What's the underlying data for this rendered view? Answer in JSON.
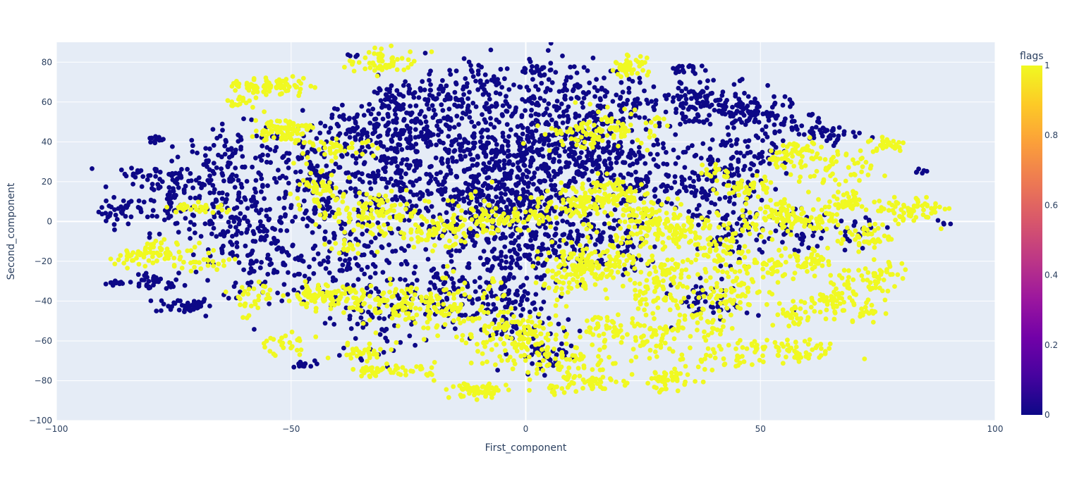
{
  "chart_data": {
    "type": "scatter",
    "title": "",
    "xlabel": "First_component",
    "ylabel": "Second_component",
    "xlim": [
      -100,
      100
    ],
    "ylim": [
      -100,
      90
    ],
    "x_ticks": [
      -100,
      -50,
      0,
      50,
      100
    ],
    "x_tick_labels": [
      "−100",
      "−50",
      "0",
      "50",
      "100"
    ],
    "y_ticks": [
      -100,
      -80,
      -60,
      -40,
      -20,
      0,
      20,
      40,
      60,
      80
    ],
    "y_tick_labels": [
      "−100",
      "−80",
      "−60",
      "−40",
      "−20",
      "0",
      "20",
      "40",
      "60",
      "80"
    ],
    "grid": true,
    "plot_background": "#e5ecf6",
    "color_variable": "flags",
    "colorscale": "plasma",
    "colorbar": {
      "title": "flags",
      "range": [
        0,
        1
      ],
      "ticks": [
        0,
        0.2,
        0.4,
        0.6,
        0.8,
        1
      ],
      "tick_labels": [
        "0",
        "0.2",
        "0.4",
        "0.6",
        "0.8",
        "1"
      ],
      "colors": [
        "#0d0887",
        "#46039f",
        "#7201a8",
        "#9c179e",
        "#bd3786",
        "#d8576b",
        "#ed7953",
        "#fb9f3a",
        "#fdca26",
        "#f0f921"
      ]
    },
    "marker_colors": {
      "flag_0": "#0d0887",
      "flag_1": "#f0f921"
    },
    "clusters": [
      {
        "flag": 0,
        "cx": -87,
        "cy": -31,
        "sx": 1.2,
        "sy": 0.8,
        "n": 12
      },
      {
        "flag": 0,
        "cx": -87,
        "cy": 5,
        "sx": 2.0,
        "sy": 3.5,
        "n": 30
      },
      {
        "flag": 0,
        "cx": -82,
        "cy": 24,
        "sx": 2.0,
        "sy": 1.5,
        "n": 15
      },
      {
        "flag": 0,
        "cx": -79,
        "cy": 41,
        "sx": 1.0,
        "sy": 1.0,
        "n": 12
      },
      {
        "flag": 0,
        "cx": -79,
        "cy": -31,
        "sx": 3.0,
        "sy": 2.0,
        "n": 35
      },
      {
        "flag": 0,
        "cx": -73,
        "cy": -42,
        "sx": 3.0,
        "sy": 2.0,
        "n": 40
      },
      {
        "flag": 0,
        "cx": -75,
        "cy": 15,
        "sx": 5.0,
        "sy": 10.0,
        "n": 110
      },
      {
        "flag": 0,
        "cx": -62,
        "cy": 0,
        "sx": 6.0,
        "sy": 14.0,
        "n": 160
      },
      {
        "flag": 0,
        "cx": -62,
        "cy": 32,
        "sx": 6.0,
        "sy": 8.0,
        "n": 80
      },
      {
        "flag": 0,
        "cx": -55,
        "cy": -22,
        "sx": 5.0,
        "sy": 8.0,
        "n": 70
      },
      {
        "flag": 0,
        "cx": -48,
        "cy": -72,
        "sx": 1.5,
        "sy": 1.0,
        "n": 12
      },
      {
        "flag": 0,
        "cx": -45,
        "cy": 20,
        "sx": 6.0,
        "sy": 15.0,
        "n": 160
      },
      {
        "flag": 0,
        "cx": -40,
        "cy": -20,
        "sx": 6.0,
        "sy": 14.0,
        "n": 120
      },
      {
        "flag": 0,
        "cx": -37,
        "cy": 83,
        "sx": 0.8,
        "sy": 0.8,
        "n": 4
      },
      {
        "flag": 0,
        "cx": -35,
        "cy": 47,
        "sx": 6.0,
        "sy": 6.0,
        "n": 60
      },
      {
        "flag": 0,
        "cx": -32,
        "cy": -52,
        "sx": 5.0,
        "sy": 8.0,
        "n": 50
      },
      {
        "flag": 0,
        "cx": -28,
        "cy": 25,
        "sx": 6.0,
        "sy": 12.0,
        "n": 180
      },
      {
        "flag": 0,
        "cx": -26,
        "cy": 60,
        "sx": 5.0,
        "sy": 6.0,
        "n": 90
      },
      {
        "flag": 0,
        "cx": -22,
        "cy": 45,
        "sx": 5.0,
        "sy": 7.0,
        "n": 90
      },
      {
        "flag": 0,
        "cx": -18,
        "cy": -35,
        "sx": 7.0,
        "sy": 8.0,
        "n": 110
      },
      {
        "flag": 0,
        "cx": -15,
        "cy": 12,
        "sx": 7.0,
        "sy": 18.0,
        "n": 220
      },
      {
        "flag": 0,
        "cx": -10,
        "cy": 65,
        "sx": 6.0,
        "sy": 10.0,
        "n": 110
      },
      {
        "flag": 0,
        "cx": -5,
        "cy": 35,
        "sx": 7.0,
        "sy": 12.0,
        "n": 200
      },
      {
        "flag": 0,
        "cx": -3,
        "cy": -10,
        "sx": 5.0,
        "sy": 12.0,
        "n": 170
      },
      {
        "flag": 0,
        "cx": -5,
        "cy": -45,
        "sx": 5.0,
        "sy": 10.0,
        "n": 90
      },
      {
        "flag": 0,
        "cx": 2,
        "cy": 76,
        "sx": 1.5,
        "sy": 2.0,
        "n": 20
      },
      {
        "flag": 0,
        "cx": 0,
        "cy": 15,
        "sx": 6.0,
        "sy": 10.0,
        "n": 170
      },
      {
        "flag": 0,
        "cx": 5,
        "cy": -65,
        "sx": 3.0,
        "sy": 6.0,
        "n": 40
      },
      {
        "flag": 0,
        "cx": 8,
        "cy": 60,
        "sx": 6.0,
        "sy": 12.0,
        "n": 160
      },
      {
        "flag": 0,
        "cx": 10,
        "cy": 35,
        "sx": 6.0,
        "sy": 10.0,
        "n": 130
      },
      {
        "flag": 0,
        "cx": 10,
        "cy": -10,
        "sx": 5.0,
        "sy": 8.0,
        "n": 80
      },
      {
        "flag": 0,
        "cx": 18,
        "cy": 25,
        "sx": 5.0,
        "sy": 10.0,
        "n": 100
      },
      {
        "flag": 0,
        "cx": 20,
        "cy": -10,
        "sx": 4.0,
        "sy": 8.0,
        "n": 60
      },
      {
        "flag": 0,
        "cx": 22,
        "cy": 60,
        "sx": 5.0,
        "sy": 6.0,
        "n": 60
      },
      {
        "flag": 0,
        "cx": 28,
        "cy": 20,
        "sx": 5.0,
        "sy": 10.0,
        "n": 70
      },
      {
        "flag": 0,
        "cx": 35,
        "cy": 62,
        "sx": 4.0,
        "sy": 5.0,
        "n": 60
      },
      {
        "flag": 0,
        "cx": 34,
        "cy": 76,
        "sx": 2.0,
        "sy": 1.5,
        "n": 20
      },
      {
        "flag": 0,
        "cx": 38,
        "cy": 20,
        "sx": 5.0,
        "sy": 10.0,
        "n": 90
      },
      {
        "flag": 0,
        "cx": 40,
        "cy": -40,
        "sx": 4.0,
        "sy": 5.0,
        "n": 50
      },
      {
        "flag": 0,
        "cx": 45,
        "cy": 55,
        "sx": 6.0,
        "sy": 6.0,
        "n": 140
      },
      {
        "flag": 0,
        "cx": 48,
        "cy": 30,
        "sx": 4.0,
        "sy": 8.0,
        "n": 70
      },
      {
        "flag": 0,
        "cx": 45,
        "cy": -5,
        "sx": 4.0,
        "sy": 8.0,
        "n": 70
      },
      {
        "flag": 0,
        "cx": 58,
        "cy": 48,
        "sx": 3.0,
        "sy": 3.0,
        "n": 20
      },
      {
        "flag": 0,
        "cx": 64,
        "cy": 45,
        "sx": 2.0,
        "sy": 3.0,
        "n": 20
      },
      {
        "flag": 0,
        "cx": 67,
        "cy": 45,
        "sx": 3.0,
        "sy": 2.0,
        "n": 15
      },
      {
        "flag": 0,
        "cx": 59,
        "cy": -5,
        "sx": 3.0,
        "sy": 6.0,
        "n": 30
      },
      {
        "flag": 0,
        "cx": 72,
        "cy": -5,
        "sx": 3.0,
        "sy": 4.0,
        "n": 20
      },
      {
        "flag": 0,
        "cx": 84,
        "cy": 25,
        "sx": 1.0,
        "sy": 1.0,
        "n": 6
      },
      {
        "flag": 0,
        "cx": 89,
        "cy": 0,
        "sx": 1.0,
        "sy": 1.0,
        "n": 4
      },
      {
        "flag": 1,
        "cx": -83,
        "cy": -18,
        "sx": 3.0,
        "sy": 2.0,
        "n": 30
      },
      {
        "flag": 1,
        "cx": -77,
        "cy": -15,
        "sx": 3.0,
        "sy": 3.0,
        "n": 40
      },
      {
        "flag": 1,
        "cx": -70,
        "cy": 7,
        "sx": 3.0,
        "sy": 1.5,
        "n": 30
      },
      {
        "flag": 1,
        "cx": -68,
        "cy": -20,
        "sx": 3.0,
        "sy": 3.0,
        "n": 25
      },
      {
        "flag": 1,
        "cx": -61,
        "cy": 60,
        "sx": 1.5,
        "sy": 2.0,
        "n": 15
      },
      {
        "flag": 1,
        "cx": -58,
        "cy": 68,
        "sx": 2.5,
        "sy": 2.0,
        "n": 35
      },
      {
        "flag": 1,
        "cx": -52,
        "cy": 68,
        "sx": 3.0,
        "sy": 2.5,
        "n": 45
      },
      {
        "flag": 1,
        "cx": -52,
        "cy": 46,
        "sx": 3.0,
        "sy": 3.0,
        "n": 80
      },
      {
        "flag": 1,
        "cx": -58,
        "cy": -38,
        "sx": 3.0,
        "sy": 5.0,
        "n": 30
      },
      {
        "flag": 1,
        "cx": -52,
        "cy": -62,
        "sx": 3.0,
        "sy": 3.0,
        "n": 25
      },
      {
        "flag": 1,
        "cx": -45,
        "cy": 15,
        "sx": 3.0,
        "sy": 5.0,
        "n": 50
      },
      {
        "flag": 1,
        "cx": -43,
        "cy": -38,
        "sx": 4.0,
        "sy": 3.0,
        "n": 90
      },
      {
        "flag": 1,
        "cx": -40,
        "cy": 37,
        "sx": 4.0,
        "sy": 2.0,
        "n": 40
      },
      {
        "flag": 1,
        "cx": -38,
        "cy": -13,
        "sx": 2.0,
        "sy": 2.0,
        "n": 15
      },
      {
        "flag": 1,
        "cx": -35,
        "cy": -65,
        "sx": 3.0,
        "sy": 2.0,
        "n": 30
      },
      {
        "flag": 1,
        "cx": -33,
        "cy": -76,
        "sx": 2.0,
        "sy": 2.0,
        "n": 25
      },
      {
        "flag": 1,
        "cx": -32,
        "cy": 5,
        "sx": 5.0,
        "sy": 6.0,
        "n": 100
      },
      {
        "flag": 1,
        "cx": -30,
        "cy": 80,
        "sx": 4.0,
        "sy": 3.0,
        "n": 60
      },
      {
        "flag": 1,
        "cx": -28,
        "cy": -42,
        "sx": 5.0,
        "sy": 5.0,
        "n": 90
      },
      {
        "flag": 1,
        "cx": -25,
        "cy": -75,
        "sx": 3.0,
        "sy": 2.0,
        "n": 30
      },
      {
        "flag": 1,
        "cx": -20,
        "cy": -5,
        "sx": 4.0,
        "sy": 4.0,
        "n": 60
      },
      {
        "flag": 1,
        "cx": -15,
        "cy": -45,
        "sx": 6.0,
        "sy": 8.0,
        "n": 110
      },
      {
        "flag": 1,
        "cx": -12,
        "cy": 0,
        "sx": 4.0,
        "sy": 6.0,
        "n": 50
      },
      {
        "flag": 1,
        "cx": -10,
        "cy": -85,
        "sx": 3.0,
        "sy": 2.0,
        "n": 70
      },
      {
        "flag": 1,
        "cx": -5,
        "cy": -60,
        "sx": 4.0,
        "sy": 6.0,
        "n": 60
      },
      {
        "flag": 1,
        "cx": -5,
        "cy": 0,
        "sx": 3.0,
        "sy": 3.0,
        "n": 30
      },
      {
        "flag": 1,
        "cx": 2,
        "cy": -55,
        "sx": 3.0,
        "sy": 5.0,
        "n": 50
      },
      {
        "flag": 1,
        "cx": 3,
        "cy": 5,
        "sx": 4.0,
        "sy": 4.0,
        "n": 50
      },
      {
        "flag": 1,
        "cx": 8,
        "cy": -70,
        "sx": 6.0,
        "sy": 4.0,
        "n": 70
      },
      {
        "flag": 1,
        "cx": 7,
        "cy": -85,
        "sx": 1.5,
        "sy": 1.5,
        "n": 12
      },
      {
        "flag": 1,
        "cx": 10,
        "cy": -25,
        "sx": 4.0,
        "sy": 6.0,
        "n": 100
      },
      {
        "flag": 1,
        "cx": 12,
        "cy": 43,
        "sx": 4.0,
        "sy": 4.0,
        "n": 50
      },
      {
        "flag": 1,
        "cx": 12,
        "cy": 10,
        "sx": 4.0,
        "sy": 4.0,
        "n": 70
      },
      {
        "flag": 1,
        "cx": 13,
        "cy": -80,
        "sx": 3.0,
        "sy": 2.0,
        "n": 40
      },
      {
        "flag": 1,
        "cx": 16,
        "cy": -20,
        "sx": 4.0,
        "sy": 5.0,
        "n": 70
      },
      {
        "flag": 1,
        "cx": 18,
        "cy": 15,
        "sx": 4.0,
        "sy": 4.0,
        "n": 60
      },
      {
        "flag": 1,
        "cx": 20,
        "cy": -55,
        "sx": 4.0,
        "sy": 6.0,
        "n": 60
      },
      {
        "flag": 1,
        "cx": 20,
        "cy": 47,
        "sx": 4.0,
        "sy": 4.0,
        "n": 60
      },
      {
        "flag": 1,
        "cx": 22,
        "cy": 78,
        "sx": 2.0,
        "sy": 2.5,
        "n": 45
      },
      {
        "flag": 1,
        "cx": 25,
        "cy": -5,
        "sx": 5.0,
        "sy": 6.0,
        "n": 80
      },
      {
        "flag": 1,
        "cx": 25,
        "cy": 5,
        "sx": 4.0,
        "sy": 4.0,
        "n": 50
      },
      {
        "flag": 1,
        "cx": 28,
        "cy": -60,
        "sx": 3.0,
        "sy": 5.0,
        "n": 40
      },
      {
        "flag": 1,
        "cx": 28,
        "cy": -35,
        "sx": 4.0,
        "sy": 5.0,
        "n": 60
      },
      {
        "flag": 1,
        "cx": 30,
        "cy": -80,
        "sx": 3.0,
        "sy": 3.0,
        "n": 50
      },
      {
        "flag": 1,
        "cx": 30,
        "cy": -25,
        "sx": 3.0,
        "sy": 3.0,
        "n": 40
      },
      {
        "flag": 1,
        "cx": 33,
        "cy": -5,
        "sx": 4.0,
        "sy": 4.0,
        "n": 50
      },
      {
        "flag": 1,
        "cx": 38,
        "cy": -50,
        "sx": 3.0,
        "sy": 5.0,
        "n": 40
      },
      {
        "flag": 1,
        "cx": 40,
        "cy": 25,
        "sx": 2.0,
        "sy": 2.0,
        "n": 15
      },
      {
        "flag": 1,
        "cx": 40,
        "cy": -15,
        "sx": 3.0,
        "sy": 5.0,
        "n": 50
      },
      {
        "flag": 1,
        "cx": 42,
        "cy": -68,
        "sx": 4.0,
        "sy": 4.0,
        "n": 40
      },
      {
        "flag": 1,
        "cx": 45,
        "cy": -35,
        "sx": 4.0,
        "sy": 5.0,
        "n": 60
      },
      {
        "flag": 1,
        "cx": 47,
        "cy": 18,
        "sx": 3.0,
        "sy": 3.0,
        "n": 40
      },
      {
        "flag": 1,
        "cx": 50,
        "cy": 0,
        "sx": 4.0,
        "sy": 5.0,
        "n": 50
      },
      {
        "flag": 1,
        "cx": 52,
        "cy": -22,
        "sx": 4.0,
        "sy": 4.0,
        "n": 40
      },
      {
        "flag": 1,
        "cx": 55,
        "cy": 30,
        "sx": 2.0,
        "sy": 2.0,
        "n": 15
      },
      {
        "flag": 1,
        "cx": 55,
        "cy": 5,
        "sx": 3.0,
        "sy": 3.0,
        "n": 40
      },
      {
        "flag": 1,
        "cx": 57,
        "cy": -47,
        "sx": 2.0,
        "sy": 3.0,
        "n": 30
      },
      {
        "flag": 1,
        "cx": 58,
        "cy": 35,
        "sx": 3.0,
        "sy": 3.0,
        "n": 50
      },
      {
        "flag": 1,
        "cx": 57,
        "cy": -65,
        "sx": 5.0,
        "sy": 3.0,
        "n": 60
      },
      {
        "flag": 1,
        "cx": 60,
        "cy": -20,
        "sx": 3.0,
        "sy": 3.0,
        "n": 40
      },
      {
        "flag": 1,
        "cx": 62,
        "cy": 0,
        "sx": 3.0,
        "sy": 3.0,
        "n": 40
      },
      {
        "flag": 1,
        "cx": 64,
        "cy": -40,
        "sx": 3.0,
        "sy": 3.0,
        "n": 40
      },
      {
        "flag": 1,
        "cx": 66,
        "cy": 25,
        "sx": 4.0,
        "sy": 5.0,
        "n": 50
      },
      {
        "flag": 1,
        "cx": 68,
        "cy": 10,
        "sx": 3.0,
        "sy": 3.0,
        "n": 40
      },
      {
        "flag": 1,
        "cx": 70,
        "cy": -45,
        "sx": 3.0,
        "sy": 3.0,
        "n": 30
      },
      {
        "flag": 1,
        "cx": 72,
        "cy": -8,
        "sx": 3.0,
        "sy": 3.0,
        "n": 40
      },
      {
        "flag": 1,
        "cx": 72,
        "cy": -30,
        "sx": 4.0,
        "sy": 5.0,
        "n": 40
      },
      {
        "flag": 1,
        "cx": 77,
        "cy": 39,
        "sx": 2.0,
        "sy": 2.0,
        "n": 30
      },
      {
        "flag": 1,
        "cx": 78,
        "cy": -25,
        "sx": 2.0,
        "sy": 3.0,
        "n": 20
      },
      {
        "flag": 1,
        "cx": 80,
        "cy": 5,
        "sx": 3.0,
        "sy": 4.0,
        "n": 40
      },
      {
        "flag": 1,
        "cx": 85,
        "cy": 7,
        "sx": 3.0,
        "sy": 3.0,
        "n": 30
      }
    ]
  }
}
